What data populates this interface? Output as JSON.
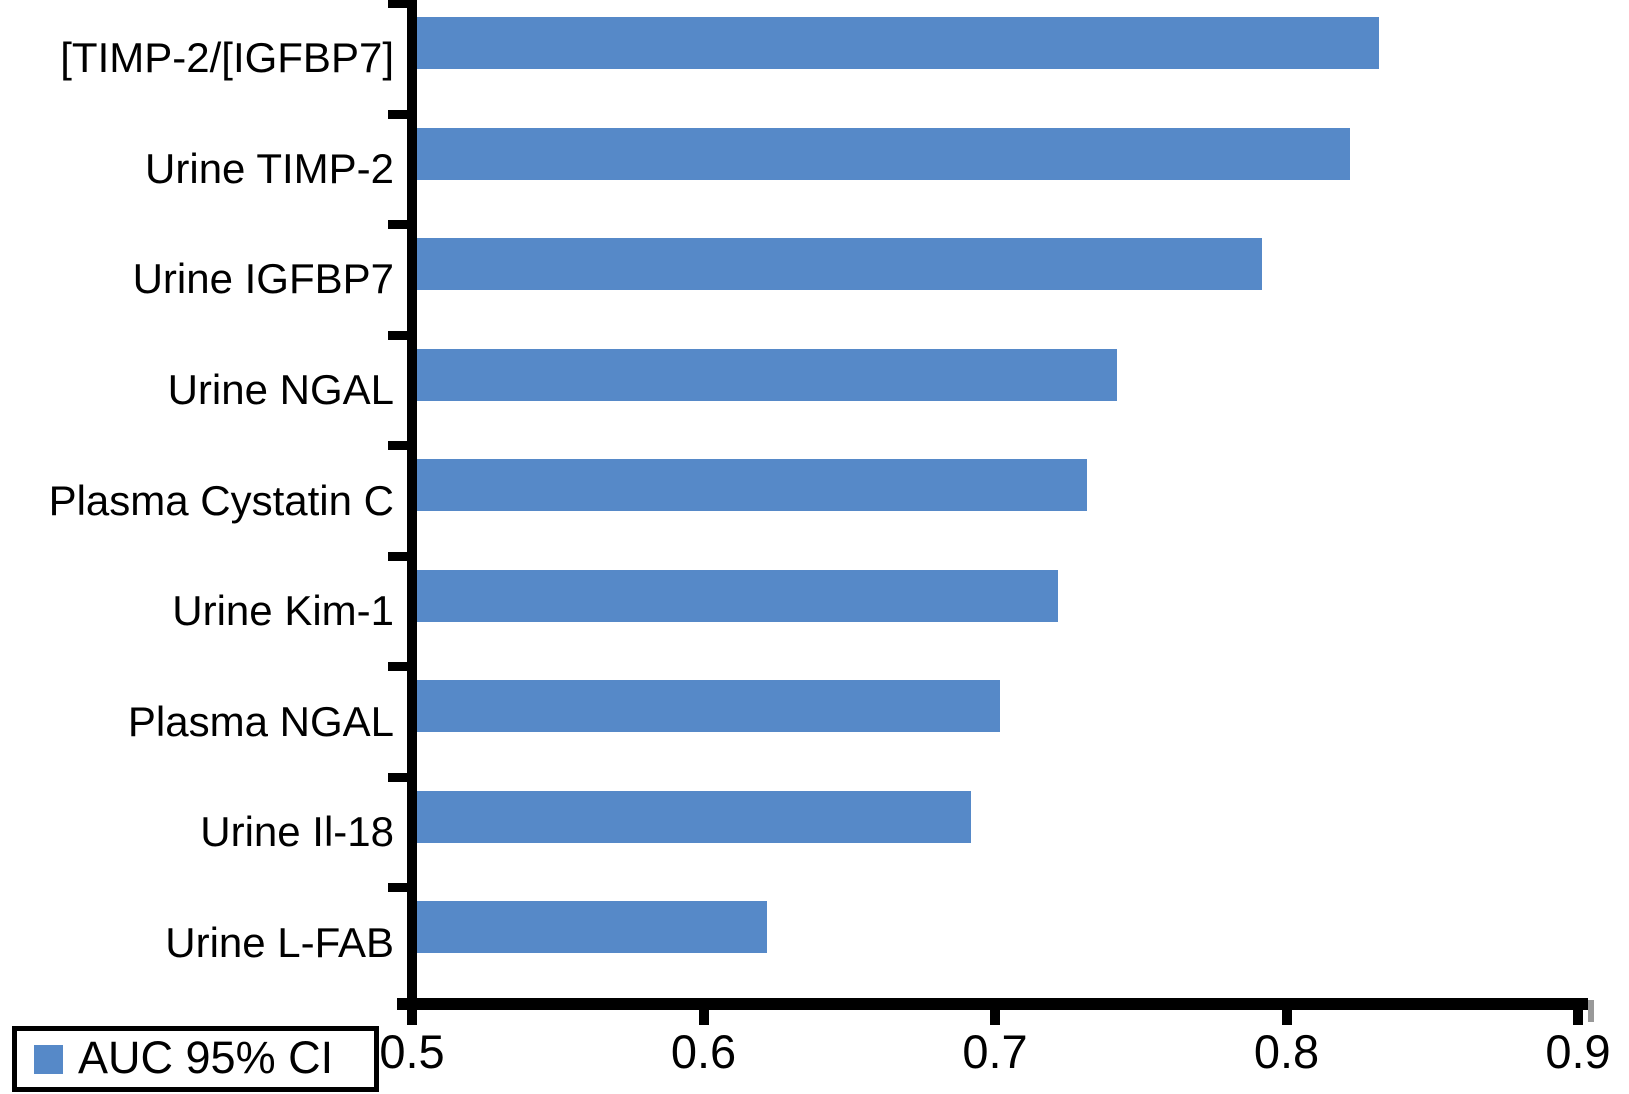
{
  "chart_data": {
    "type": "bar",
    "orientation": "horizontal",
    "title": "",
    "xlabel": "",
    "ylabel": "",
    "categories": [
      "[TIMP-2/[IGFBP7]",
      "Urine TIMP-2",
      "Urine IGFBP7",
      "Urine NGAL",
      "Plasma Cystatin C",
      "Urine Kim-1",
      "Plasma NGAL",
      "Urine Il-18",
      "Urine L-FAB"
    ],
    "series": [
      {
        "name": "AUC 95% CI",
        "values": [
          0.83,
          0.82,
          0.79,
          0.74,
          0.73,
          0.72,
          0.7,
          0.69,
          0.62
        ]
      }
    ],
    "xlim": [
      0.5,
      0.9
    ],
    "x_ticks": [
      0.5,
      0.6,
      0.7,
      0.8,
      0.9
    ],
    "x_tick_labels": [
      "0.5",
      "0.6",
      "0.7",
      "0.8",
      "0.9"
    ],
    "grid": false,
    "bar_color": "#5689C8",
    "axis_color": "#000000",
    "legend": {
      "label": "AUC 95% CI",
      "position": "bottom-left",
      "boxed": true
    }
  }
}
